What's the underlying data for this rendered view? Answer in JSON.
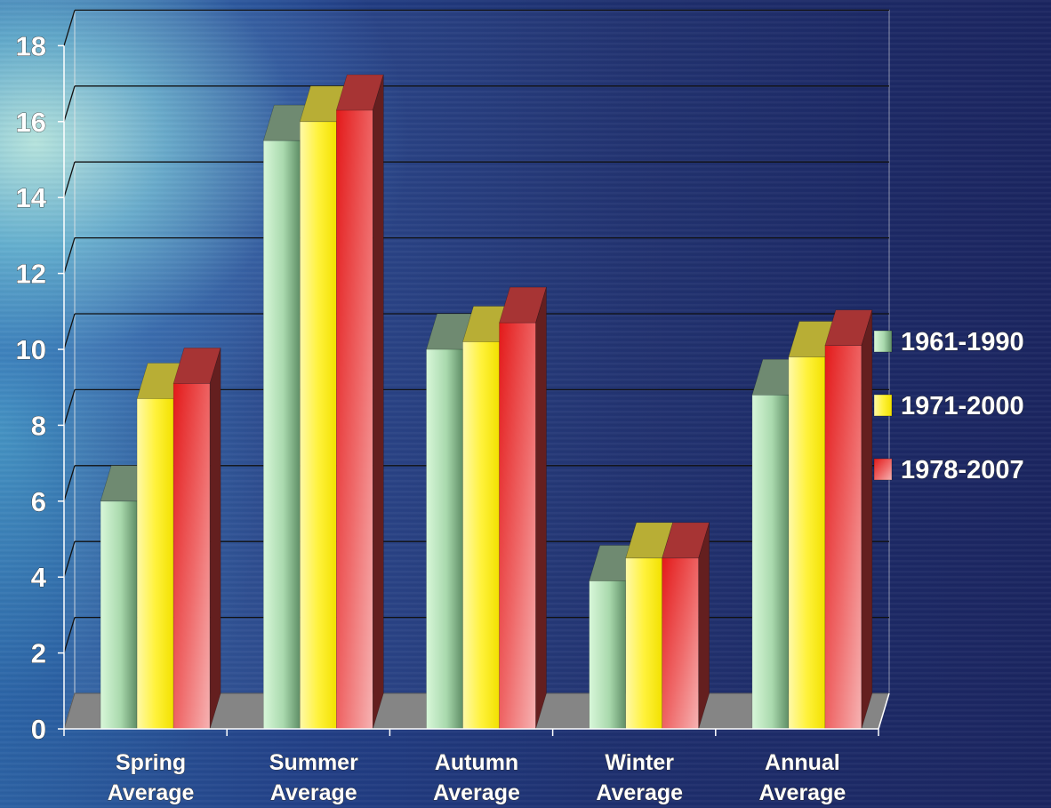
{
  "chart_data": {
    "type": "bar",
    "categories": [
      [
        "Spring",
        "Average"
      ],
      [
        "Summer",
        "Average"
      ],
      [
        "Autumn",
        "Average"
      ],
      [
        "Winter",
        "Average"
      ],
      [
        "Annual",
        "Average"
      ]
    ],
    "series": [
      {
        "name": "1961-1990",
        "values": [
          6.0,
          15.5,
          10.0,
          3.9,
          8.8
        ],
        "color": "#b9e6bd"
      },
      {
        "name": "1971-2000",
        "values": [
          8.7,
          16.0,
          10.2,
          4.5,
          9.8
        ],
        "color": "#fff14a"
      },
      {
        "name": "1978-2007",
        "values": [
          9.1,
          16.3,
          10.7,
          4.5,
          10.1
        ],
        "color": "#ee4a4a"
      }
    ],
    "ylim": [
      0,
      18
    ],
    "yticks": [
      "0",
      "2",
      "4",
      "6",
      "8",
      "10",
      "12",
      "14",
      "16",
      "18"
    ],
    "grid": true,
    "legend_position": "right",
    "colors": {
      "floor": "#858585",
      "grid": "#111111",
      "text": "#ffffff"
    }
  }
}
